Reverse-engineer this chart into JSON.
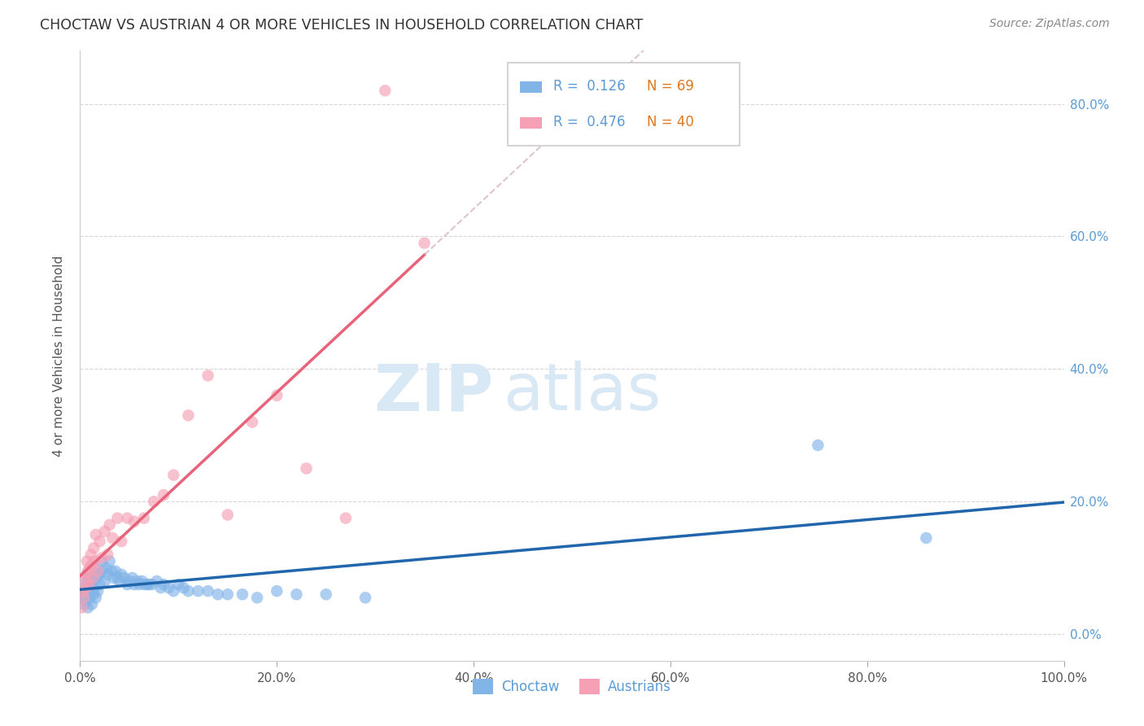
{
  "title": "CHOCTAW VS AUSTRIAN 4 OR MORE VEHICLES IN HOUSEHOLD CORRELATION CHART",
  "source": "Source: ZipAtlas.com",
  "ylabel": "4 or more Vehicles in Household",
  "xlim": [
    0.0,
    1.0
  ],
  "ylim": [
    -0.04,
    0.88
  ],
  "choctaw_R": 0.126,
  "choctaw_N": 69,
  "austrian_R": 0.476,
  "austrian_N": 40,
  "choctaw_color": "#82b4e8",
  "austrian_color": "#f5a0b5",
  "choctaw_line_color": "#2166ac",
  "austrian_line_color": "#e8637a",
  "austrian_dashed_color": "#d4b0bb",
  "grid_color": "#cccccc",
  "background_color": "#ffffff",
  "watermark_zip": "ZIP",
  "watermark_atlas": "atlas",
  "watermark_color": "#d8e8f5",
  "choctaw_x": [
    0.002,
    0.003,
    0.004,
    0.005,
    0.006,
    0.006,
    0.007,
    0.007,
    0.008,
    0.008,
    0.009,
    0.01,
    0.01,
    0.011,
    0.012,
    0.012,
    0.013,
    0.014,
    0.015,
    0.015,
    0.016,
    0.017,
    0.018,
    0.019,
    0.02,
    0.022,
    0.023,
    0.025,
    0.026,
    0.028,
    0.03,
    0.032,
    0.034,
    0.036,
    0.038,
    0.04,
    0.042,
    0.045,
    0.048,
    0.05,
    0.053,
    0.055,
    0.058,
    0.06,
    0.063,
    0.065,
    0.068,
    0.07,
    0.073,
    0.078,
    0.082,
    0.085,
    0.09,
    0.095,
    0.1,
    0.105,
    0.11,
    0.12,
    0.13,
    0.14,
    0.15,
    0.165,
    0.18,
    0.2,
    0.22,
    0.25,
    0.29,
    0.75,
    0.86
  ],
  "choctaw_y": [
    0.055,
    0.06,
    0.045,
    0.07,
    0.05,
    0.08,
    0.065,
    0.09,
    0.04,
    0.075,
    0.06,
    0.085,
    0.055,
    0.095,
    0.07,
    0.045,
    0.08,
    0.06,
    0.1,
    0.07,
    0.055,
    0.085,
    0.065,
    0.09,
    0.075,
    0.11,
    0.095,
    0.08,
    0.1,
    0.09,
    0.11,
    0.095,
    0.085,
    0.095,
    0.085,
    0.08,
    0.09,
    0.085,
    0.075,
    0.08,
    0.085,
    0.075,
    0.08,
    0.075,
    0.08,
    0.075,
    0.075,
    0.075,
    0.075,
    0.08,
    0.07,
    0.075,
    0.07,
    0.065,
    0.075,
    0.07,
    0.065,
    0.065,
    0.065,
    0.06,
    0.06,
    0.06,
    0.055,
    0.065,
    0.06,
    0.06,
    0.055,
    0.285,
    0.145
  ],
  "austrian_x": [
    0.002,
    0.003,
    0.004,
    0.005,
    0.006,
    0.007,
    0.007,
    0.008,
    0.009,
    0.01,
    0.011,
    0.012,
    0.013,
    0.014,
    0.015,
    0.016,
    0.018,
    0.02,
    0.022,
    0.025,
    0.028,
    0.03,
    0.033,
    0.038,
    0.042,
    0.048,
    0.055,
    0.065,
    0.075,
    0.085,
    0.095,
    0.11,
    0.13,
    0.15,
    0.175,
    0.2,
    0.23,
    0.27,
    0.31,
    0.35
  ],
  "austrian_y": [
    0.04,
    0.065,
    0.055,
    0.08,
    0.07,
    0.09,
    0.11,
    0.095,
    0.075,
    0.1,
    0.12,
    0.105,
    0.085,
    0.13,
    0.11,
    0.15,
    0.095,
    0.14,
    0.115,
    0.155,
    0.12,
    0.165,
    0.145,
    0.175,
    0.14,
    0.175,
    0.17,
    0.175,
    0.2,
    0.21,
    0.24,
    0.33,
    0.39,
    0.18,
    0.32,
    0.36,
    0.25,
    0.175,
    0.82,
    0.59
  ]
}
